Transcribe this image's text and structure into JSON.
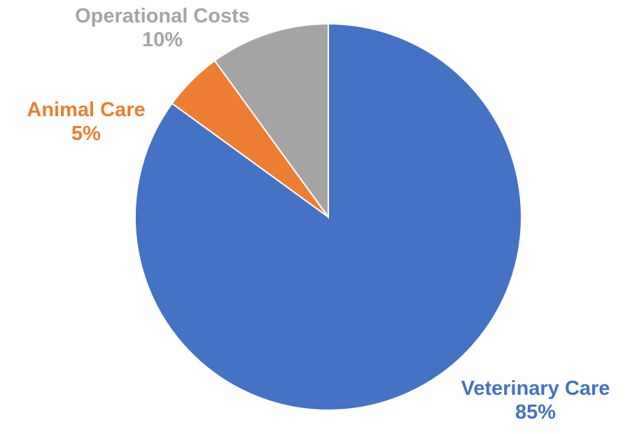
{
  "chart_data": {
    "type": "pie",
    "title": "",
    "start": "top, clockwise",
    "slices": [
      {
        "label": "Veterinary Care",
        "value": 85,
        "display": "85%",
        "color": "#4472C4"
      },
      {
        "label": "Animal Care",
        "value": 5,
        "display": "5%",
        "color": "#ED7D31"
      },
      {
        "label": "Operational Costs",
        "value": 10,
        "display": "10%",
        "color": "#A5A5A5"
      }
    ]
  }
}
